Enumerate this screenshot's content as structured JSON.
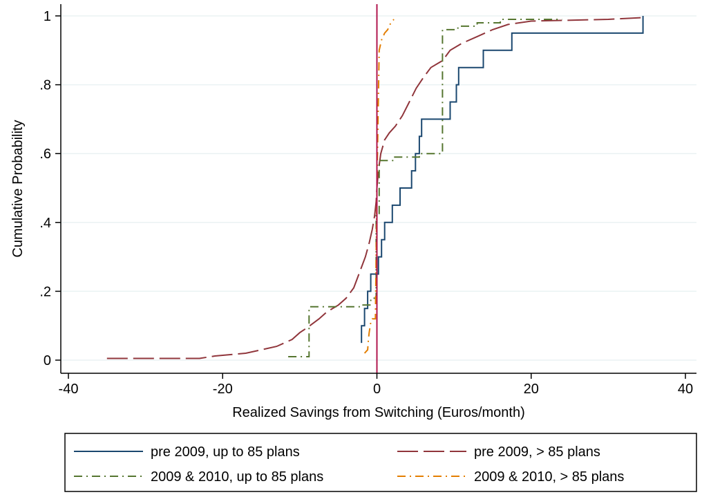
{
  "chart_data": {
    "type": "line",
    "title": "",
    "xlabel": "Realized Savings from Switching (Euros/month)",
    "ylabel": "Cumulative Probability",
    "xlim": [
      -40,
      40
    ],
    "ylim": [
      0,
      1
    ],
    "xticks": [
      -40,
      -20,
      0,
      20,
      40
    ],
    "xtick_labels": [
      "-40",
      "-20",
      "0",
      "20",
      "40"
    ],
    "yticks": [
      0,
      0.2,
      0.4,
      0.6,
      0.8,
      1
    ],
    "ytick_labels": [
      "0",
      ".2",
      ".4",
      ".6",
      ".8",
      "1"
    ],
    "grid": "horizontal",
    "legend_position": "bottom",
    "reference_line": {
      "x": 0,
      "color": "#b0164e"
    },
    "series": [
      {
        "name": "pre 2009, up to 85 plans",
        "color": "#1a476f",
        "dash": "solid",
        "points": [
          [
            -2.0,
            0.05
          ],
          [
            -2.0,
            0.1
          ],
          [
            -1.6,
            0.1
          ],
          [
            -1.6,
            0.15
          ],
          [
            -1.2,
            0.15
          ],
          [
            -1.2,
            0.2
          ],
          [
            -0.8,
            0.2
          ],
          [
            -0.8,
            0.25
          ],
          [
            0.2,
            0.25
          ],
          [
            0.2,
            0.3
          ],
          [
            0.6,
            0.3
          ],
          [
            0.6,
            0.35
          ],
          [
            1.0,
            0.35
          ],
          [
            1.0,
            0.4
          ],
          [
            2.0,
            0.4
          ],
          [
            2.0,
            0.45
          ],
          [
            3.0,
            0.45
          ],
          [
            3.0,
            0.5
          ],
          [
            4.5,
            0.5
          ],
          [
            4.5,
            0.55
          ],
          [
            5.0,
            0.55
          ],
          [
            5.0,
            0.6
          ],
          [
            5.5,
            0.6
          ],
          [
            5.5,
            0.65
          ],
          [
            5.8,
            0.65
          ],
          [
            5.8,
            0.7
          ],
          [
            9.5,
            0.7
          ],
          [
            9.5,
            0.75
          ],
          [
            10.3,
            0.75
          ],
          [
            10.3,
            0.8
          ],
          [
            10.6,
            0.8
          ],
          [
            10.6,
            0.85
          ],
          [
            13.8,
            0.85
          ],
          [
            13.8,
            0.9
          ],
          [
            17.5,
            0.9
          ],
          [
            17.5,
            0.95
          ],
          [
            34.5,
            0.95
          ],
          [
            34.5,
            1.0
          ]
        ]
      },
      {
        "name": "pre 2009, > 85 plans",
        "color": "#90353b",
        "dash": "long-dash",
        "points": [
          [
            -35,
            0.005
          ],
          [
            -23,
            0.005
          ],
          [
            -21,
            0.012
          ],
          [
            -17,
            0.02
          ],
          [
            -15,
            0.03
          ],
          [
            -13,
            0.04
          ],
          [
            -11,
            0.06
          ],
          [
            -10,
            0.08
          ],
          [
            -9,
            0.095
          ],
          [
            -7.5,
            0.12
          ],
          [
            -6.5,
            0.14
          ],
          [
            -5,
            0.16
          ],
          [
            -4,
            0.18
          ],
          [
            -3,
            0.21
          ],
          [
            -2.5,
            0.24
          ],
          [
            -2,
            0.27
          ],
          [
            -1.5,
            0.3
          ],
          [
            -1,
            0.34
          ],
          [
            -0.6,
            0.38
          ],
          [
            -0.3,
            0.42
          ],
          [
            -0.1,
            0.46
          ],
          [
            0,
            0.5
          ],
          [
            0.2,
            0.55
          ],
          [
            0.5,
            0.6
          ],
          [
            1,
            0.64
          ],
          [
            1.6,
            0.66
          ],
          [
            2.4,
            0.68
          ],
          [
            3.3,
            0.71
          ],
          [
            4.2,
            0.75
          ],
          [
            5.1,
            0.79
          ],
          [
            6,
            0.82
          ],
          [
            7,
            0.85
          ],
          [
            8.5,
            0.87
          ],
          [
            9.5,
            0.9
          ],
          [
            11,
            0.92
          ],
          [
            13,
            0.94
          ],
          [
            15,
            0.96
          ],
          [
            17,
            0.975
          ],
          [
            20,
            0.985
          ],
          [
            30,
            0.99
          ],
          [
            34.5,
            0.995
          ]
        ]
      },
      {
        "name": "2009 & 2010, up to 85 plans",
        "color": "#55752f",
        "dash": "dash-dot",
        "points": [
          [
            -11.5,
            0.01
          ],
          [
            -8.8,
            0.01
          ],
          [
            -8.8,
            0.155
          ],
          [
            -2.0,
            0.155
          ],
          [
            -2.0,
            0.16
          ],
          [
            -0.8,
            0.16
          ],
          [
            -0.8,
            0.18
          ],
          [
            -0.1,
            0.18
          ],
          [
            -0.1,
            0.42
          ],
          [
            0.3,
            0.42
          ],
          [
            0.3,
            0.58
          ],
          [
            2.2,
            0.58
          ],
          [
            2.2,
            0.59
          ],
          [
            5.5,
            0.59
          ],
          [
            5.5,
            0.6
          ],
          [
            8.5,
            0.6
          ],
          [
            8.5,
            0.96
          ],
          [
            10.5,
            0.96
          ],
          [
            10.5,
            0.97
          ],
          [
            13,
            0.97
          ],
          [
            13,
            0.98
          ],
          [
            16,
            0.98
          ],
          [
            16,
            0.99
          ],
          [
            24,
            0.99
          ]
        ]
      },
      {
        "name": "2009 & 2010, > 85 plans",
        "color": "#e37e00",
        "dash": "dash-dot",
        "points": [
          [
            -1.6,
            0.02
          ],
          [
            -1.2,
            0.03
          ],
          [
            -1.1,
            0.06
          ],
          [
            -1.0,
            0.08
          ],
          [
            -0.8,
            0.11
          ],
          [
            -0.6,
            0.12
          ],
          [
            -0.2,
            0.12
          ],
          [
            0,
            0.5
          ],
          [
            0.3,
            0.9
          ],
          [
            0.6,
            0.93
          ],
          [
            1.0,
            0.95
          ],
          [
            1.4,
            0.96
          ],
          [
            1.8,
            0.98
          ],
          [
            2.2,
            0.99
          ]
        ]
      }
    ]
  }
}
